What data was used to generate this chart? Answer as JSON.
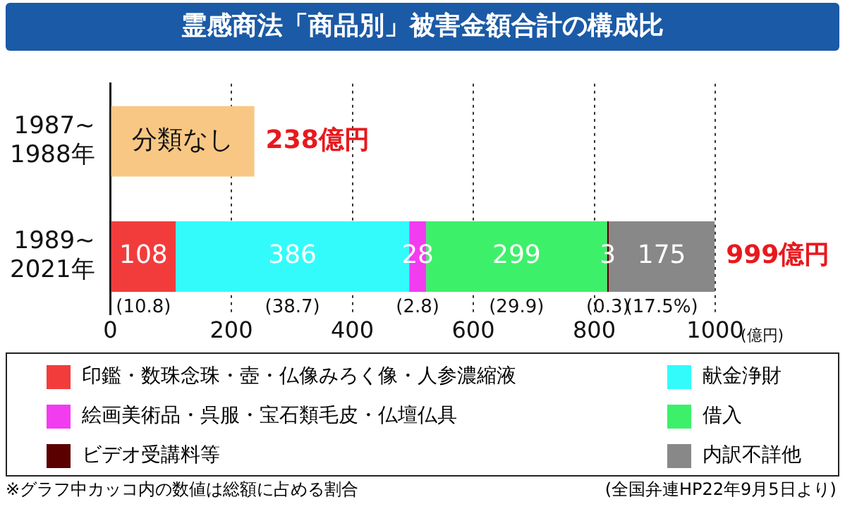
{
  "chart_data": {
    "type": "bar",
    "orientation": "horizontal",
    "stacked": true,
    "title": "霊感商法「商品別」被害金額合計の構成比",
    "xlabel": "(億円)",
    "categories": [
      "1987~\n1988年",
      "1989~\n2021年"
    ],
    "series": [
      {
        "name": "分類なし",
        "color": "#f9c784",
        "values": [
          238,
          null
        ]
      },
      {
        "name": "印鑑・数珠念珠・壺・仏像みろく像・人参濃縮液",
        "color": "#f23c3c",
        "values": [
          null,
          108
        ],
        "value_labels": [
          null,
          "108"
        ]
      },
      {
        "name": "献金浄財",
        "color": "#33fbfb",
        "values": [
          null,
          386
        ],
        "value_labels": [
          null,
          "386"
        ]
      },
      {
        "name": "絵画美術品・呉服・宝石類毛皮・仏壇仏具",
        "color": "#f23cf0",
        "values": [
          null,
          28
        ],
        "value_labels": [
          null,
          "28"
        ]
      },
      {
        "name": "借入",
        "color": "#3df06a",
        "values": [
          null,
          299
        ],
        "value_labels": [
          null,
          "299"
        ]
      },
      {
        "name": "ビデオ受講料等",
        "color": "#5a0000",
        "values": [
          null,
          3
        ],
        "value_labels": [
          null,
          "3"
        ]
      },
      {
        "name": "内訳不詳他",
        "color": "#888888",
        "values": [
          null,
          175
        ],
        "value_labels": [
          null,
          "175"
        ]
      }
    ],
    "totals": [
      "238億円",
      "999億円"
    ],
    "xlim": [
      0,
      1000
    ],
    "xticks": [
      0,
      200,
      400,
      600,
      800,
      1000
    ],
    "grid": "x",
    "legend": "bottom",
    "annotations": [
      "(10.8)",
      "(38.7)",
      "(2.8)",
      "(29.9)",
      "(0.3)",
      "(17.5%)",
      "※グラフ中カッコ内の数値は総額に占める割合",
      "(全国弁連HP22年9月5日より)"
    ]
  }
}
